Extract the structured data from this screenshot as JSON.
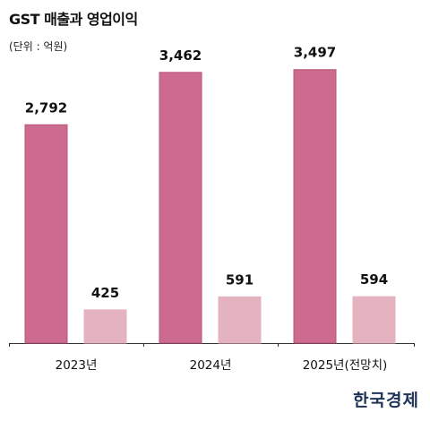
{
  "header": {
    "title": "GST 매출과 영업이익",
    "unit": "(단위 : 억원)"
  },
  "logo": "한국경제",
  "colors": {
    "revenue": "#cc6b8e",
    "revenue_stroke": "#b8567a",
    "profit": "#e5b3c0",
    "axis": "#333333"
  },
  "chart_data": {
    "type": "bar",
    "categories": [
      "2023년",
      "2024년",
      "2025년(전망치)"
    ],
    "series": [
      {
        "values": [
          2792,
          3462,
          3497
        ]
      },
      {
        "values": [
          425,
          591,
          594
        ]
      }
    ],
    "value_labels": [
      [
        "2,792",
        "3,462",
        "3,497"
      ],
      [
        "425",
        "591",
        "594"
      ]
    ],
    "ylim": [
      0,
      3700
    ],
    "grid": false
  }
}
